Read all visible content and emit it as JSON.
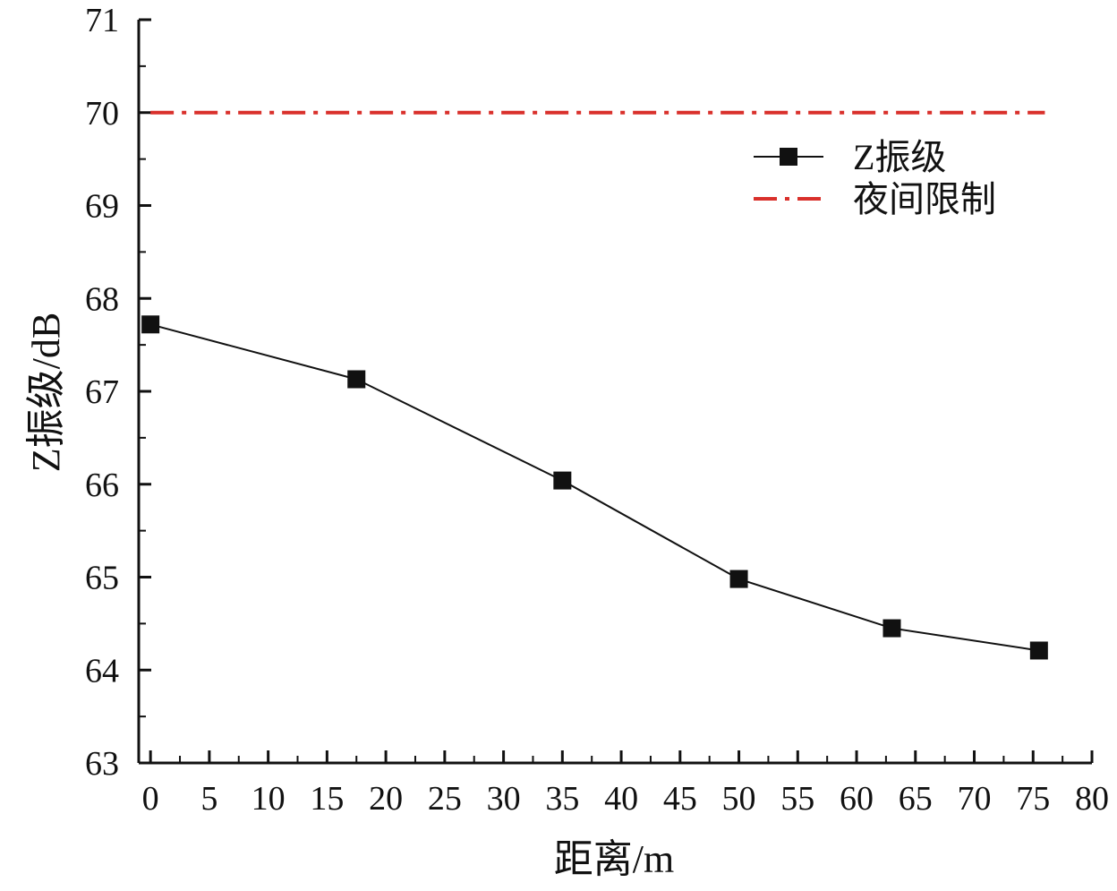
{
  "chart_data": {
    "type": "line",
    "title": "",
    "xlabel": "距离/m",
    "ylabel": "Z振级/dB",
    "xlim": [
      -1,
      80
    ],
    "ylim": [
      63,
      71
    ],
    "xticks": [
      0,
      5,
      10,
      15,
      20,
      25,
      30,
      35,
      40,
      45,
      50,
      55,
      60,
      65,
      70,
      75,
      80
    ],
    "yticks": [
      63,
      64,
      65,
      66,
      67,
      68,
      69,
      70,
      71
    ],
    "grid": false,
    "legend_position": "top-right",
    "series": [
      {
        "name": "Z振级",
        "color": "#111111",
        "marker": "square",
        "line_style": "solid",
        "x": [
          0,
          17.5,
          35,
          50,
          63,
          75.5
        ],
        "y": [
          67.72,
          67.13,
          66.04,
          64.98,
          64.45,
          64.21
        ]
      },
      {
        "name": "夜间限制",
        "color": "#d9302b",
        "marker": "none",
        "line_style": "dash-dot",
        "x": [
          0,
          76
        ],
        "y": [
          70,
          70
        ]
      }
    ]
  }
}
